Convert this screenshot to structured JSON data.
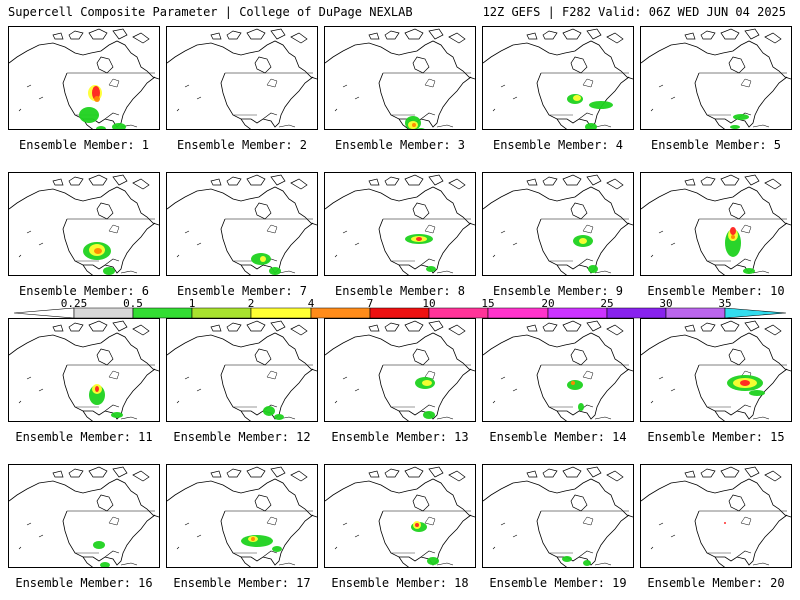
{
  "header": {
    "left": "Supercell Composite Parameter | College of DuPage NEXLAB",
    "right": "12Z GEFS | F282 Valid: 06Z WED JUN 04 2025"
  },
  "caption_prefix": "Ensemble Member: ",
  "members": [
    {
      "label": "Ensemble Member: 1",
      "blobs": [
        [
          "c",
          "#1fd21f",
          80,
          88,
          10,
          8
        ],
        [
          "c",
          "#ffff33",
          86,
          66,
          7,
          8
        ],
        [
          "c",
          "#ff2222",
          87,
          66,
          4,
          7
        ],
        [
          "c",
          "#ff8800",
          88,
          72,
          3,
          3
        ],
        [
          "c",
          "#1fd21f",
          110,
          100,
          7,
          4
        ],
        [
          "c",
          "#1fd21f",
          92,
          102,
          5,
          3
        ]
      ]
    },
    {
      "label": "Ensemble Member: 2",
      "blobs": []
    },
    {
      "label": "Ensemble Member: 3",
      "blobs": [
        [
          "c",
          "#1fd21f",
          88,
          96,
          8,
          7
        ],
        [
          "c",
          "#ffff33",
          88,
          98,
          5,
          4
        ],
        [
          "c",
          "#ff8800",
          89,
          98,
          2,
          2
        ],
        [
          "c",
          "#1fd21f",
          96,
          104,
          5,
          3
        ]
      ]
    },
    {
      "label": "Ensemble Member: 4",
      "blobs": [
        [
          "c",
          "#1fd21f",
          92,
          72,
          8,
          5
        ],
        [
          "c",
          "#ffff33",
          94,
          71,
          4,
          3
        ],
        [
          "c",
          "#1fd21f",
          118,
          78,
          12,
          4
        ],
        [
          "c",
          "#1fd21f",
          108,
          100,
          6,
          4
        ]
      ]
    },
    {
      "label": "Ensemble Member: 5",
      "blobs": [
        [
          "c",
          "#1fd21f",
          100,
          90,
          8,
          3
        ],
        [
          "c",
          "#1fd21f",
          94,
          100,
          5,
          2
        ]
      ]
    },
    {
      "label": "Ensemble Member: 6",
      "blobs": [
        [
          "c",
          "#1fd21f",
          88,
          78,
          14,
          9
        ],
        [
          "c",
          "#ffff33",
          88,
          77,
          8,
          6
        ],
        [
          "c",
          "#ff8800",
          89,
          78,
          4,
          3
        ],
        [
          "c",
          "#1fd21f",
          100,
          98,
          6,
          4
        ]
      ]
    },
    {
      "label": "Ensemble Member: 7",
      "blobs": [
        [
          "c",
          "#1fd21f",
          94,
          86,
          10,
          6
        ],
        [
          "c",
          "#ffff33",
          96,
          86,
          3,
          3
        ],
        [
          "c",
          "#1fd21f",
          108,
          98,
          6,
          4
        ]
      ]
    },
    {
      "label": "Ensemble Member: 8",
      "blobs": [
        [
          "c",
          "#1fd21f",
          94,
          66,
          14,
          5
        ],
        [
          "c",
          "#ffff33",
          94,
          66,
          8,
          3
        ],
        [
          "c",
          "#ff2222",
          94,
          66,
          3,
          2
        ],
        [
          "c",
          "#1fd21f",
          106,
          96,
          5,
          3
        ]
      ]
    },
    {
      "label": "Ensemble Member: 9",
      "blobs": [
        [
          "c",
          "#1fd21f",
          100,
          68,
          10,
          6
        ],
        [
          "c",
          "#ffff33",
          100,
          68,
          4,
          3
        ],
        [
          "c",
          "#1fd21f",
          110,
          96,
          5,
          4
        ]
      ]
    },
    {
      "label": "Ensemble Member: 10",
      "blobs": [
        [
          "c",
          "#1fd21f",
          92,
          70,
          8,
          14
        ],
        [
          "c",
          "#ffff33",
          92,
          62,
          5,
          6
        ],
        [
          "c",
          "#ff2222",
          92,
          58,
          3,
          4
        ],
        [
          "c",
          "#ff8800",
          92,
          64,
          2,
          2
        ],
        [
          "c",
          "#1fd21f",
          108,
          98,
          6,
          3
        ]
      ]
    },
    {
      "label": "Ensemble Member: 11",
      "blobs": [
        [
          "c",
          "#1fd21f",
          88,
          76,
          8,
          10
        ],
        [
          "c",
          "#ffff33",
          88,
          70,
          5,
          5
        ],
        [
          "c",
          "#ff2222",
          88,
          70,
          2,
          3
        ],
        [
          "c",
          "#1fd21f",
          108,
          96,
          6,
          3
        ]
      ]
    },
    {
      "label": "Ensemble Member: 12",
      "blobs": [
        [
          "c",
          "#1fd21f",
          102,
          92,
          6,
          5
        ],
        [
          "c",
          "#1fd21f",
          112,
          98,
          5,
          3
        ]
      ]
    },
    {
      "label": "Ensemble Member: 13",
      "blobs": [
        [
          "c",
          "#1fd21f",
          100,
          64,
          10,
          6
        ],
        [
          "c",
          "#ffff33",
          102,
          64,
          5,
          3
        ],
        [
          "c",
          "#1fd21f",
          104,
          96,
          6,
          4
        ]
      ]
    },
    {
      "label": "Ensemble Member: 14",
      "blobs": [
        [
          "c",
          "#1fd21f",
          92,
          66,
          8,
          5
        ],
        [
          "c",
          "#ff8800",
          90,
          64,
          2,
          2
        ],
        [
          "c",
          "#1fd21f",
          98,
          88,
          3,
          4
        ]
      ]
    },
    {
      "label": "Ensemble Member: 15",
      "blobs": [
        [
          "c",
          "#1fd21f",
          104,
          64,
          18,
          8
        ],
        [
          "c",
          "#ffff33",
          104,
          64,
          12,
          5
        ],
        [
          "c",
          "#ff2222",
          104,
          64,
          5,
          3
        ],
        [
          "c",
          "#1fd21f",
          116,
          74,
          8,
          3
        ]
      ]
    },
    {
      "label": "Ensemble Member: 16",
      "blobs": [
        [
          "c",
          "#1fd21f",
          90,
          80,
          6,
          4
        ],
        [
          "c",
          "#1fd21f",
          96,
          100,
          5,
          3
        ]
      ]
    },
    {
      "label": "Ensemble Member: 17",
      "blobs": [
        [
          "c",
          "#1fd21f",
          90,
          76,
          16,
          6
        ],
        [
          "c",
          "#ffff33",
          86,
          74,
          5,
          3
        ],
        [
          "c",
          "#ff8800",
          86,
          74,
          2,
          2
        ],
        [
          "c",
          "#1fd21f",
          110,
          84,
          5,
          3
        ]
      ]
    },
    {
      "label": "Ensemble Member: 18",
      "blobs": [
        [
          "c",
          "#1fd21f",
          94,
          62,
          8,
          5
        ],
        [
          "c",
          "#ffff33",
          92,
          60,
          4,
          4
        ],
        [
          "c",
          "#ff2222",
          92,
          60,
          2,
          2
        ],
        [
          "c",
          "#1fd21f",
          108,
          96,
          6,
          4
        ]
      ]
    },
    {
      "label": "Ensemble Member: 19",
      "blobs": [
        [
          "c",
          "#1fd21f",
          84,
          94,
          5,
          3
        ],
        [
          "c",
          "#1fd21f",
          104,
          98,
          4,
          3
        ]
      ]
    },
    {
      "label": "Ensemble Member: 20",
      "blobs": [
        [
          "c",
          "#ff2222",
          84,
          58,
          1,
          1
        ]
      ]
    }
  ],
  "colorbar": {
    "ticks": [
      "0.25",
      "0.5",
      "1",
      "2",
      "4",
      "7",
      "10",
      "15",
      "20",
      "25",
      "30",
      "35"
    ],
    "colors": [
      "#ffffff",
      "#d8d8d8",
      "#33dd33",
      "#a8e22e",
      "#ffff33",
      "#ff8c1a",
      "#ee1111",
      "#ff3399",
      "#ff33cc",
      "#cc33ff",
      "#8822ee",
      "#bb66ee",
      "#33ddee"
    ]
  }
}
